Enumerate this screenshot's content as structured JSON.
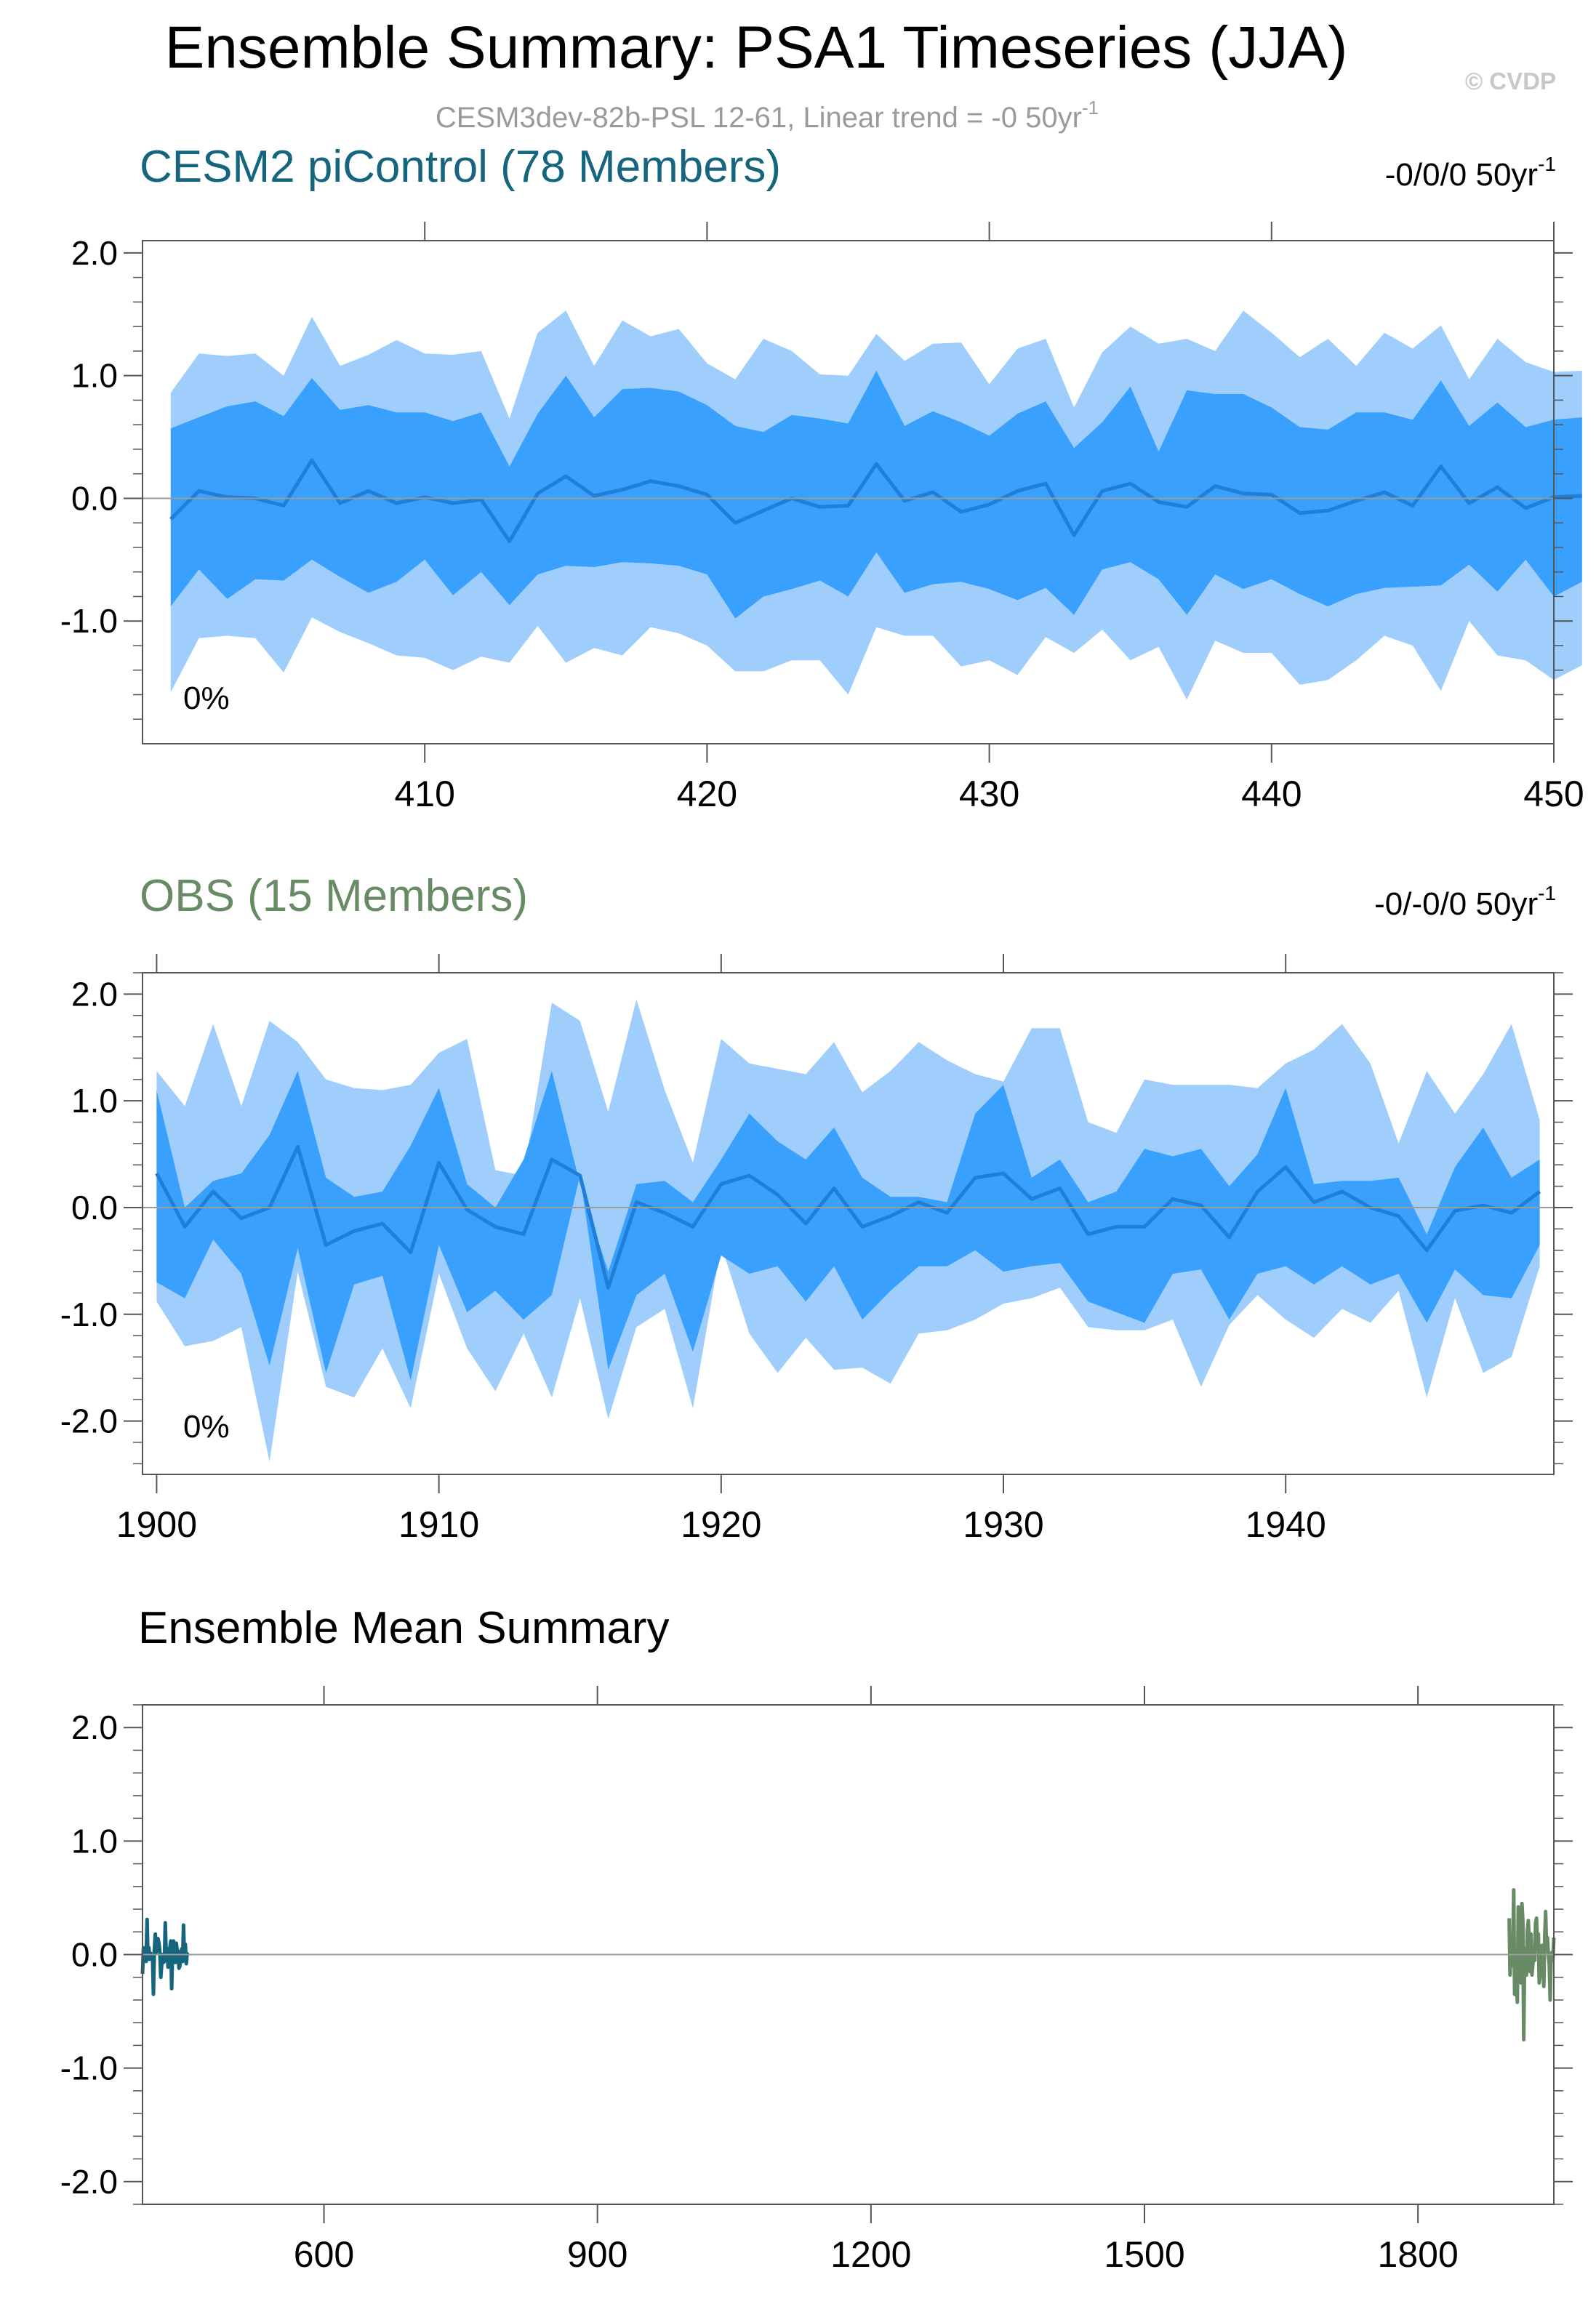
{
  "title": "Ensemble Summary: PSA1 Timeseries (JJA)",
  "copyright": "© CVDP",
  "subtitle": "CESM3dev-82b-PSL 12-61, Linear trend = -0 50yr",
  "subtitle_sup": "-1",
  "colors": {
    "outer_band": "#9fcefd",
    "inner_band": "#39a0fd",
    "mean_line": "#1f7fd8",
    "model": "#15657f",
    "obs": "#688b66",
    "axis": "#555555",
    "zero_line": "#9a9a9a",
    "subtitle": "#9a9a9a"
  },
  "chart_data": [
    {
      "type": "area",
      "name": "CESM2 piControl",
      "title": "CESM2 piControl (78 Members)",
      "trend_label": "-0/0/0 50yr",
      "trend_sup": "-1",
      "annotation": "0%",
      "xlim": [
        400,
        450
      ],
      "ylim": [
        -2.0,
        2.1
      ],
      "xticks": [
        410,
        420,
        430,
        440,
        450
      ],
      "yticks": [
        -1.0,
        0.0,
        1.0,
        2.0
      ],
      "ytick_labels": [
        "-1.0",
        "0.0",
        "1.0",
        "2.0"
      ],
      "x_start": 401,
      "p2_5": [
        -1.58,
        -1.14,
        -1.12,
        -1.14,
        -1.42,
        -0.97,
        -1.09,
        -1.18,
        -1.28,
        -1.3,
        -1.4,
        -1.29,
        -1.34,
        -1.04,
        -1.34,
        -1.22,
        -1.28,
        -1.05,
        -1.1,
        -1.2,
        -1.41,
        -1.41,
        -1.32,
        -1.32,
        -1.6,
        -1.05,
        -1.12,
        -1.12,
        -1.37,
        -1.32,
        -1.44,
        -1.13,
        -1.26,
        -1.07,
        -1.32,
        -1.21,
        -1.64,
        -1.16,
        -1.26,
        -1.26,
        -1.52,
        -1.48,
        -1.32,
        -1.12,
        -1.2,
        -1.57,
        -1.0,
        -1.28,
        -1.32,
        -1.48,
        -1.36
      ],
      "p16": [
        -0.88,
        -0.58,
        -0.82,
        -0.66,
        -0.67,
        -0.5,
        -0.64,
        -0.77,
        -0.68,
        -0.5,
        -0.79,
        -0.6,
        -0.87,
        -0.62,
        -0.55,
        -0.56,
        -0.52,
        -0.53,
        -0.55,
        -0.62,
        -0.98,
        -0.8,
        -0.74,
        -0.67,
        -0.8,
        -0.44,
        -0.77,
        -0.7,
        -0.68,
        -0.74,
        -0.83,
        -0.73,
        -0.95,
        -0.58,
        -0.52,
        -0.66,
        -0.95,
        -0.62,
        -0.74,
        -0.66,
        -0.78,
        -0.88,
        -0.78,
        -0.73,
        -0.72,
        -0.71,
        -0.54,
        -0.76,
        -0.5,
        -0.8,
        -0.68
      ],
      "mean": [
        -0.17,
        0.06,
        0.01,
        0.0,
        -0.06,
        0.31,
        -0.04,
        0.06,
        -0.04,
        0.01,
        -0.04,
        -0.01,
        -0.35,
        0.04,
        0.18,
        0.02,
        0.07,
        0.14,
        0.1,
        0.03,
        -0.2,
        -0.1,
        0.0,
        -0.07,
        -0.06,
        0.28,
        -0.02,
        0.05,
        -0.11,
        -0.05,
        0.06,
        0.12,
        -0.3,
        0.06,
        0.12,
        -0.03,
        -0.07,
        0.1,
        0.04,
        0.03,
        -0.12,
        -0.1,
        -0.02,
        0.05,
        -0.06,
        0.26,
        -0.04,
        0.09,
        -0.08,
        0.01,
        0.02
      ],
      "p84": [
        0.57,
        0.66,
        0.75,
        0.79,
        0.67,
        0.98,
        0.72,
        0.76,
        0.7,
        0.7,
        0.63,
        0.7,
        0.26,
        0.69,
        1.0,
        0.66,
        0.89,
        0.9,
        0.87,
        0.76,
        0.59,
        0.54,
        0.68,
        0.65,
        0.61,
        1.04,
        0.59,
        0.71,
        0.62,
        0.51,
        0.69,
        0.79,
        0.41,
        0.62,
        0.91,
        0.38,
        0.88,
        0.85,
        0.85,
        0.74,
        0.58,
        0.56,
        0.7,
        0.7,
        0.64,
        0.96,
        0.59,
        0.78,
        0.58,
        0.64,
        0.66
      ],
      "p97_5": [
        0.86,
        1.18,
        1.16,
        1.18,
        1.0,
        1.48,
        1.08,
        1.17,
        1.29,
        1.18,
        1.17,
        1.2,
        0.65,
        1.35,
        1.53,
        1.08,
        1.45,
        1.32,
        1.38,
        1.1,
        0.97,
        1.3,
        1.2,
        1.01,
        1.0,
        1.34,
        1.12,
        1.26,
        1.27,
        0.93,
        1.22,
        1.3,
        0.74,
        1.19,
        1.4,
        1.26,
        1.3,
        1.2,
        1.53,
        1.35,
        1.15,
        1.3,
        1.08,
        1.35,
        1.22,
        1.41,
        0.97,
        1.3,
        1.11,
        1.03,
        1.04
      ]
    },
    {
      "type": "area",
      "name": "OBS",
      "title": "OBS (15 Members)",
      "trend_label": "-0/-0/0 50yr",
      "trend_sup": "-1",
      "annotation": "0%",
      "xlim": [
        1899.5,
        1949.5
      ],
      "ylim": [
        -2.5,
        2.2
      ],
      "xticks": [
        1900,
        1910,
        1920,
        1930,
        1940
      ],
      "yticks": [
        -2.0,
        -1.0,
        0.0,
        1.0,
        2.0
      ],
      "ytick_labels": [
        "-2.0",
        "-1.0",
        "0.0",
        "1.0",
        "2.0"
      ],
      "x_start": 1900,
      "p2_5": [
        -0.88,
        -1.3,
        -1.25,
        -1.12,
        -2.38,
        -0.6,
        -1.68,
        -1.78,
        -1.32,
        -1.88,
        -0.62,
        -1.32,
        -1.72,
        -1.18,
        -1.78,
        -0.85,
        -1.98,
        -1.12,
        -0.95,
        -1.88,
        -0.35,
        -1.18,
        -1.55,
        -1.22,
        -1.52,
        -1.5,
        -1.65,
        -1.18,
        -1.15,
        -1.05,
        -0.9,
        -0.85,
        -0.75,
        -1.12,
        -1.15,
        -1.15,
        -1.05,
        -1.68,
        -1.1,
        -0.82,
        -1.05,
        -1.22,
        -0.95,
        -1.08,
        -0.78,
        -1.78,
        -0.85,
        -1.55,
        -1.4,
        -0.55
      ],
      "p16": [
        -0.7,
        -0.85,
        -0.3,
        -0.62,
        -1.48,
        -0.38,
        -1.55,
        -0.72,
        -0.64,
        -1.62,
        -0.35,
        -0.98,
        -0.78,
        -1.05,
        -0.82,
        0.3,
        -1.52,
        -0.82,
        -0.62,
        -1.35,
        -0.45,
        -0.62,
        -0.55,
        -0.88,
        -0.55,
        -1.05,
        -0.78,
        -0.55,
        -0.55,
        -0.4,
        -0.6,
        -0.55,
        -0.52,
        -0.88,
        -0.98,
        -1.08,
        -0.62,
        -0.58,
        -1.05,
        -0.62,
        -0.55,
        -0.72,
        -0.55,
        -0.72,
        -0.62,
        -1.08,
        -0.58,
        -0.82,
        -0.85,
        -0.35
      ],
      "mean": [
        0.32,
        -0.18,
        0.15,
        -0.1,
        0.0,
        0.57,
        -0.35,
        -0.22,
        -0.15,
        -0.42,
        0.42,
        -0.02,
        -0.18,
        -0.25,
        0.45,
        0.3,
        -0.75,
        0.05,
        -0.05,
        -0.18,
        0.22,
        0.3,
        0.12,
        -0.15,
        0.18,
        -0.18,
        -0.08,
        0.05,
        -0.05,
        0.28,
        0.32,
        0.08,
        0.18,
        -0.25,
        -0.18,
        -0.18,
        0.08,
        0.02,
        -0.28,
        0.15,
        0.38,
        0.05,
        0.15,
        0.0,
        -0.08,
        -0.4,
        -0.03,
        0.02,
        -0.05,
        0.15
      ],
      "p84": [
        1.1,
        0.0,
        0.25,
        0.32,
        0.68,
        1.28,
        0.28,
        0.1,
        0.15,
        0.58,
        1.12,
        0.22,
        0.0,
        0.45,
        1.28,
        0.22,
        -0.6,
        0.22,
        0.25,
        0.05,
        0.45,
        0.88,
        0.62,
        0.45,
        0.75,
        0.28,
        0.1,
        0.1,
        0.05,
        0.88,
        1.15,
        0.28,
        0.45,
        0.05,
        0.15,
        0.55,
        0.48,
        0.55,
        0.2,
        0.5,
        1.12,
        0.22,
        0.25,
        0.25,
        0.28,
        -0.25,
        0.38,
        0.75,
        0.28,
        0.45
      ],
      "p97_5": [
        1.28,
        0.95,
        1.72,
        0.95,
        1.75,
        1.55,
        1.2,
        1.12,
        1.1,
        1.15,
        1.45,
        1.58,
        0.35,
        0.3,
        1.92,
        1.75,
        0.9,
        1.95,
        1.1,
        0.42,
        1.58,
        1.35,
        1.3,
        1.25,
        1.55,
        1.08,
        1.28,
        1.55,
        1.38,
        1.25,
        1.18,
        1.68,
        1.68,
        0.8,
        0.7,
        1.2,
        1.15,
        1.15,
        1.15,
        1.12,
        1.35,
        1.48,
        1.72,
        1.35,
        0.6,
        1.28,
        0.88,
        1.25,
        1.72,
        0.82
      ]
    },
    {
      "type": "line",
      "name": "ensemble-mean",
      "title": "Ensemble Mean Summary",
      "xlim": [
        401,
        1949
      ],
      "ylim": [
        -2.2,
        2.2
      ],
      "xticks": [
        600,
        900,
        1200,
        1500,
        1800
      ],
      "yticks": [
        -2.0,
        -1.0,
        0.0,
        1.0,
        2.0
      ],
      "ytick_labels": [
        "-2.0",
        "-1.0",
        "0.0",
        "1.0",
        "2.0"
      ],
      "series": [
        {
          "name": "CESM2 piControl",
          "color_key": "model",
          "x_start": 401,
          "values": [
            -0.17,
            0.06,
            0.01,
            0.0,
            -0.06,
            0.31,
            -0.04,
            0.06,
            -0.04,
            0.01,
            -0.04,
            -0.01,
            -0.35,
            0.04,
            0.18,
            0.02,
            0.07,
            0.14,
            0.1,
            0.03,
            -0.2,
            -0.1,
            0.0,
            -0.07,
            -0.06,
            0.28,
            -0.02,
            0.05,
            -0.11,
            -0.05,
            0.06,
            0.12,
            -0.3,
            0.06,
            0.12,
            -0.03,
            -0.07,
            0.1,
            0.04,
            0.03,
            -0.12,
            -0.1,
            -0.02,
            0.05,
            -0.06,
            0.26,
            -0.04,
            0.09,
            -0.08,
            0.01,
            0.02
          ]
        },
        {
          "name": "OBS",
          "color_key": "obs",
          "x_start": 1900,
          "values": [
            0.32,
            -0.18,
            0.15,
            -0.1,
            0.0,
            0.57,
            -0.35,
            -0.22,
            -0.15,
            -0.42,
            0.42,
            -0.02,
            -0.18,
            -0.25,
            0.45,
            0.3,
            -0.75,
            0.05,
            -0.05,
            -0.18,
            0.22,
            0.3,
            0.12,
            -0.15,
            0.18,
            -0.18,
            -0.08,
            0.05,
            -0.05,
            0.28,
            0.32,
            0.08,
            0.18,
            -0.25,
            -0.18,
            -0.18,
            0.08,
            0.02,
            -0.28,
            0.15,
            0.38,
            0.05,
            0.15,
            0.0,
            -0.08,
            -0.4,
            -0.03,
            0.02,
            -0.05,
            0.15
          ]
        }
      ]
    }
  ]
}
